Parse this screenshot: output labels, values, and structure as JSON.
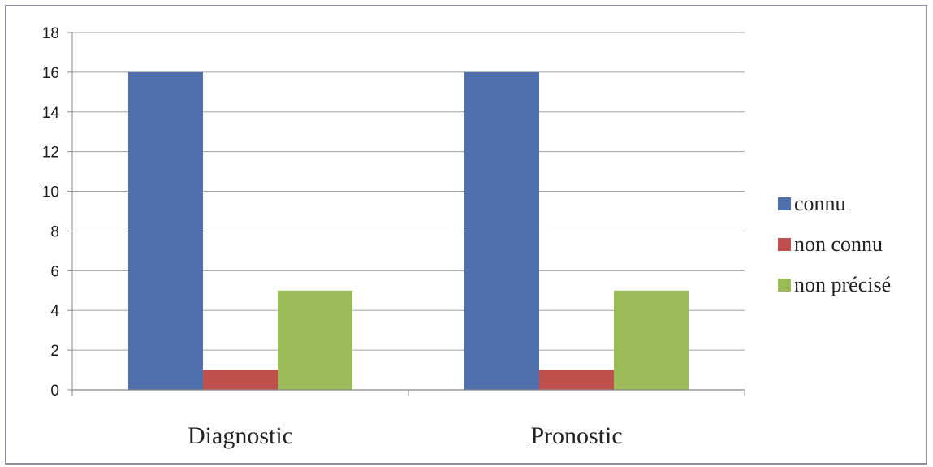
{
  "chart_data": {
    "type": "bar",
    "categories": [
      "Diagnostic",
      "Pronostic"
    ],
    "series": [
      {
        "name": "connu",
        "values": [
          16,
          16
        ],
        "color": "#4f6fad"
      },
      {
        "name": "non connu",
        "values": [
          1,
          1
        ],
        "color": "#c0504d"
      },
      {
        "name": "non précisé",
        "values": [
          5,
          5
        ],
        "color": "#9bbb59"
      }
    ],
    "ylim": [
      0,
      18
    ],
    "yticks": [
      0,
      2,
      4,
      6,
      8,
      10,
      12,
      14,
      16,
      18
    ],
    "grid": true,
    "legend_position": "right"
  }
}
